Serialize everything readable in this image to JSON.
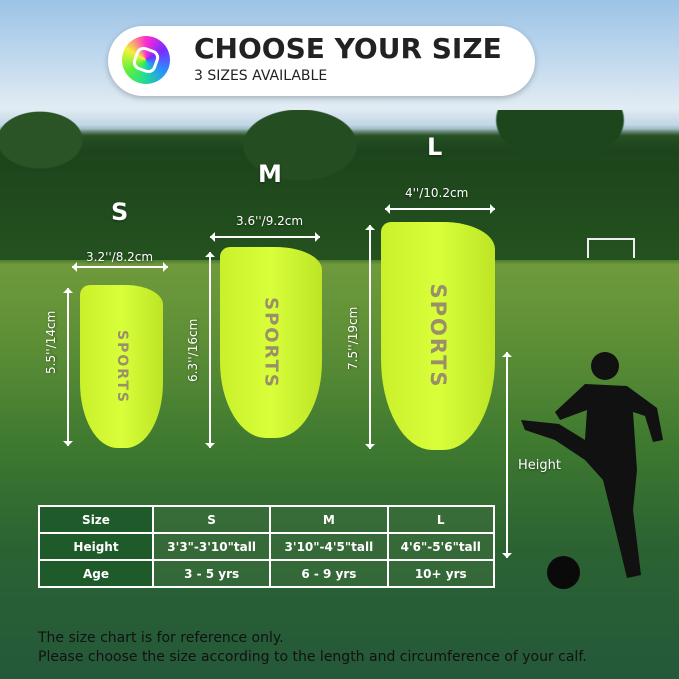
{
  "banner": {
    "title": "CHOOSE YOUR SIZE",
    "subtitle": "3 SIZES AVAILABLE",
    "icon": "soccer-ball-icon"
  },
  "guards": [
    {
      "size": "S",
      "width": "3.2''/8.2cm",
      "height": "5.5''/14cm",
      "brand": "SPORTS"
    },
    {
      "size": "M",
      "width": "3.6''/9.2cm",
      "height": "6.3''/16cm",
      "brand": "SPORTS"
    },
    {
      "size": "L",
      "width": "4''/10.2cm",
      "height": "7.5''/19cm",
      "brand": "SPORTS"
    }
  ],
  "player": {
    "label": "Height"
  },
  "table": {
    "rows": [
      [
        "Size",
        "S",
        "M",
        "L"
      ],
      [
        "Height",
        "3'3\"-3'10\"tall",
        "3'10\"-4'5\"tall",
        "4'6\"-5'6\"tall"
      ],
      [
        "Age",
        "3 - 5 yrs",
        "6 - 9 yrs",
        "10+ yrs"
      ]
    ]
  },
  "footer": [
    "The size chart is for reference only.",
    "Please choose the size according to the length and circumference of your calf."
  ],
  "colors": {
    "guard": "#d4fb35",
    "table_header": "#1f5a2a"
  }
}
